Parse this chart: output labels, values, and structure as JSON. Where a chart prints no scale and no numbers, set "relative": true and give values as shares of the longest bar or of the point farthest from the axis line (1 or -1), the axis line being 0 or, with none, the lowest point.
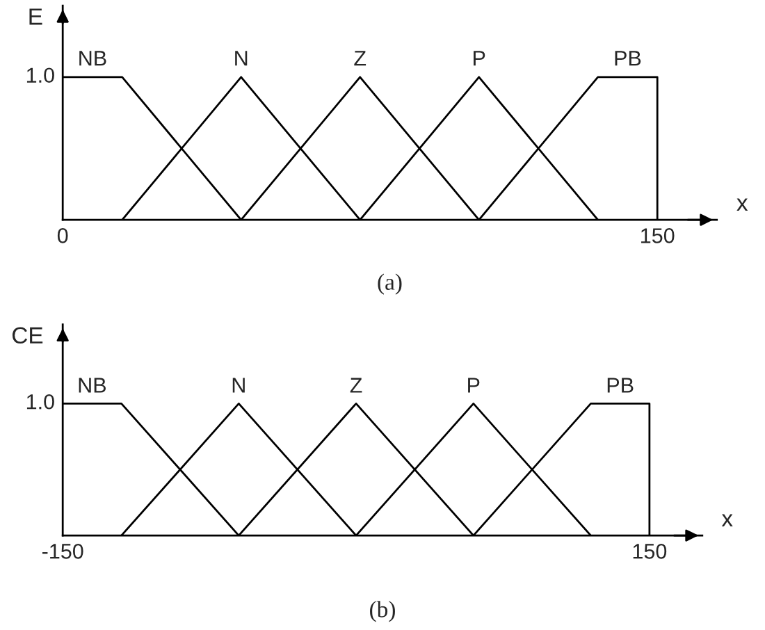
{
  "chart_data": [
    {
      "type": "line",
      "title": "(a)",
      "xlabel": "x",
      "ylabel": "E",
      "xlim": [
        0,
        165
      ],
      "xticks": [
        0,
        150
      ],
      "relative": true,
      "annotations": [
        "1.0"
      ],
      "grid": false,
      "legend": false,
      "marker": "none",
      "line_style": "solid",
      "series": [
        {
          "name": "NB",
          "color": "#000000",
          "x": [
            0,
            15,
            45
          ],
          "values": [
            1,
            1,
            0
          ]
        },
        {
          "name": "N",
          "color": "#000000",
          "x": [
            15,
            45,
            75
          ],
          "values": [
            0,
            1,
            0
          ]
        },
        {
          "name": "Z",
          "color": "#000000",
          "x": [
            45,
            75,
            105
          ],
          "values": [
            0,
            1,
            0
          ]
        },
        {
          "name": "P",
          "color": "#000000",
          "x": [
            75,
            105,
            135
          ],
          "values": [
            0,
            1,
            0
          ]
        },
        {
          "name": "PB",
          "color": "#000000",
          "x": [
            105,
            135,
            150,
            150
          ],
          "values": [
            0,
            1,
            1,
            0
          ]
        }
      ]
    },
    {
      "type": "line",
      "title": "(b)",
      "xlabel": "x",
      "ylabel": "CE",
      "xlim": [
        -150,
        177
      ],
      "xticks": [
        -150,
        150
      ],
      "relative": true,
      "annotations": [
        "1.0"
      ],
      "grid": false,
      "legend": false,
      "marker": "none",
      "line_style": "solid",
      "series": [
        {
          "name": "NB",
          "color": "#000000",
          "x": [
            -150,
            -120,
            -60
          ],
          "values": [
            1,
            1,
            0
          ]
        },
        {
          "name": "N",
          "color": "#000000",
          "x": [
            -120,
            -60,
            0
          ],
          "values": [
            0,
            1,
            0
          ]
        },
        {
          "name": "Z",
          "color": "#000000",
          "x": [
            -60,
            0,
            60
          ],
          "values": [
            0,
            1,
            0
          ]
        },
        {
          "name": "P",
          "color": "#000000",
          "x": [
            0,
            60,
            120
          ],
          "values": [
            0,
            1,
            0
          ]
        },
        {
          "name": "PB",
          "color": "#000000",
          "x": [
            60,
            120,
            150,
            150
          ],
          "values": [
            0,
            1,
            1,
            0
          ]
        }
      ]
    }
  ]
}
